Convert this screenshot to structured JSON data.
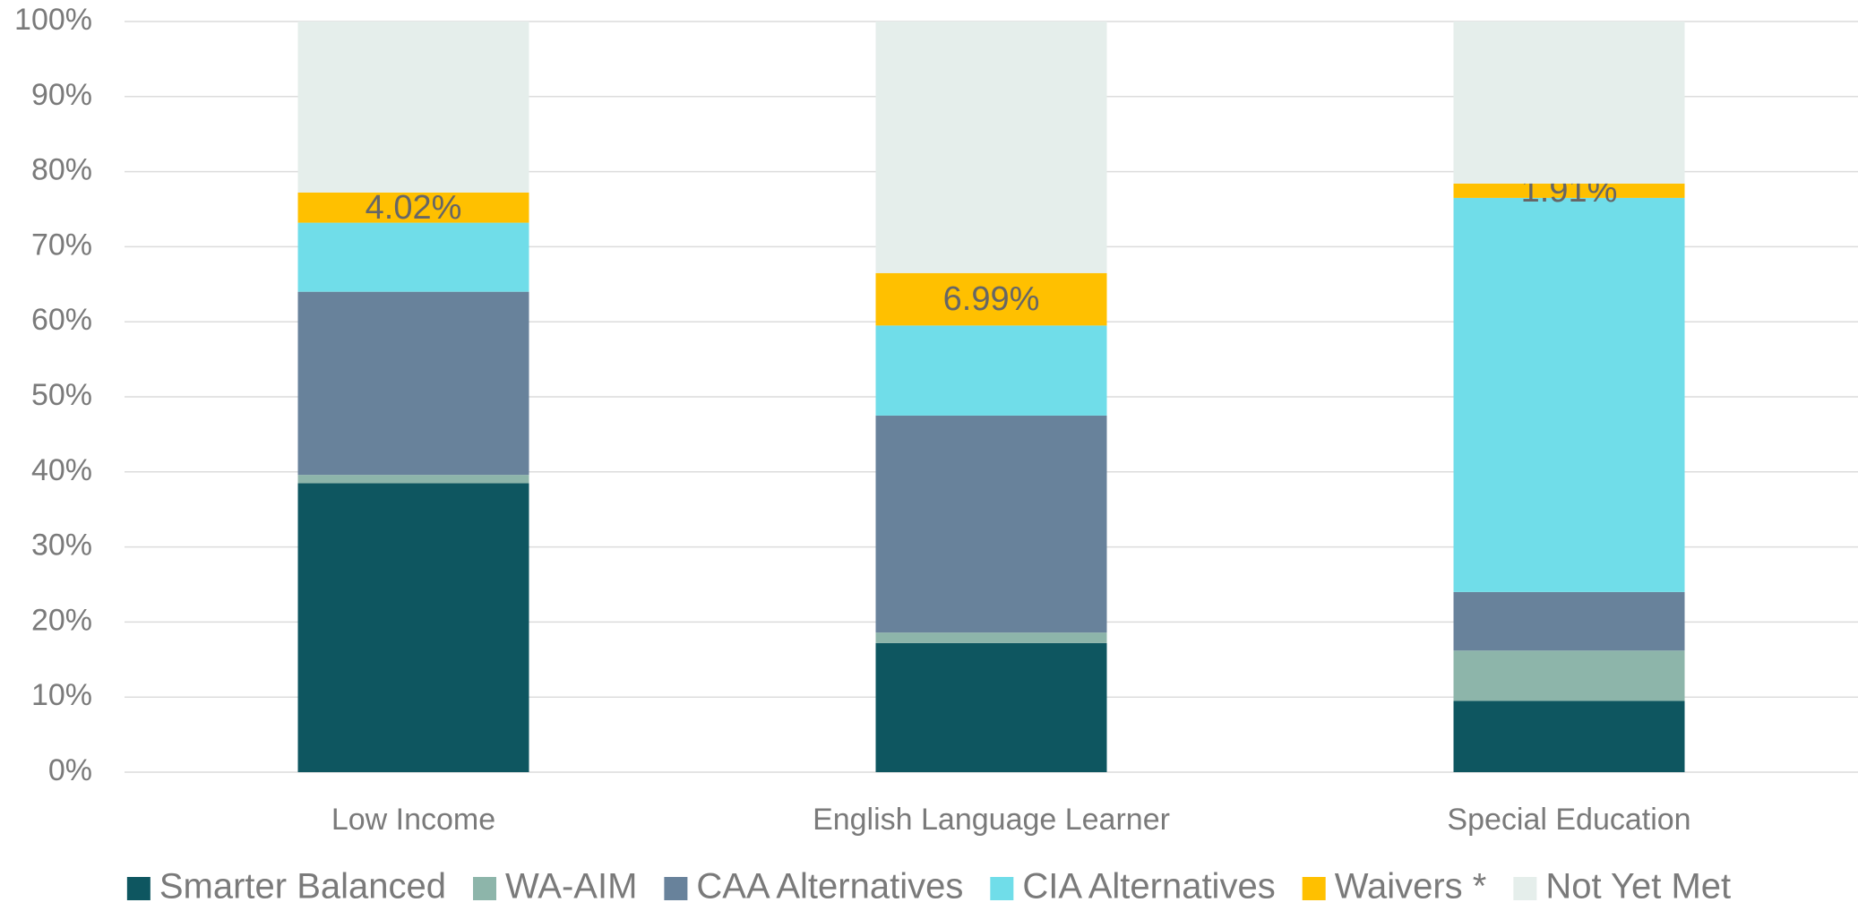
{
  "chart_data": {
    "type": "stacked_bar",
    "categories": [
      "Low Income",
      "English Language Learner",
      "Special Education"
    ],
    "series": [
      {
        "name": "Smarter Balanced",
        "color": "#0e5660",
        "values": [
          38.5,
          17.2,
          9.5
        ]
      },
      {
        "name": "WA-AIM",
        "color": "#8db5aa",
        "values": [
          1.1,
          1.4,
          6.7
        ]
      },
      {
        "name": "CAA Alternatives",
        "color": "#68829b",
        "values": [
          24.4,
          28.9,
          7.8
        ]
      },
      {
        "name": "CIA Alternatives",
        "color": "#70dde9",
        "values": [
          9.2,
          12.0,
          52.5
        ]
      },
      {
        "name": "Waivers *",
        "color": "#ffc000",
        "values": [
          4.02,
          6.99,
          1.91
        ],
        "value_labels": [
          "4.02%",
          "6.99%",
          "1.91%"
        ]
      },
      {
        "name": "Not Yet Met",
        "color": "#e5eeeb",
        "values": [
          22.78,
          33.51,
          21.59
        ]
      }
    ],
    "ylim": [
      0,
      100
    ],
    "yticks": [
      {
        "value": 0,
        "label": "0%"
      },
      {
        "value": 10,
        "label": "10%"
      },
      {
        "value": 20,
        "label": "20%"
      },
      {
        "value": 30,
        "label": "30%"
      },
      {
        "value": 40,
        "label": "40%"
      },
      {
        "value": 50,
        "label": "50%"
      },
      {
        "value": 60,
        "label": "60%"
      },
      {
        "value": 70,
        "label": "70%"
      },
      {
        "value": 80,
        "label": "80%"
      },
      {
        "value": 90,
        "label": "90%"
      },
      {
        "value": 100,
        "label": "100%"
      }
    ],
    "grid": true,
    "legend": "bottom"
  }
}
